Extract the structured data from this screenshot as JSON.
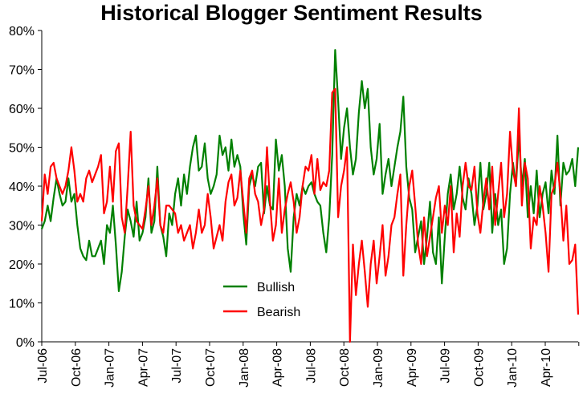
{
  "chart_data": {
    "type": "line",
    "title": "Historical Blogger Sentiment Results",
    "xlabel": "",
    "ylabel": "",
    "ylim": [
      0,
      80
    ],
    "yticks": [
      "0%",
      "10%",
      "20%",
      "30%",
      "40%",
      "50%",
      "60%",
      "70%",
      "80%"
    ],
    "xticks": [
      "Jul-06",
      "Oct-06",
      "Jan-07",
      "Apr-07",
      "Jul-07",
      "Oct-07",
      "Jan-08",
      "Apr-08",
      "Jul-08",
      "Oct-08",
      "Jan-09",
      "Apr-09",
      "Jul-09",
      "Oct-09",
      "Jan-10",
      "Apr-10"
    ],
    "grid": false,
    "legend_position": "lower-center",
    "series": [
      {
        "name": "Bullish",
        "color": "#008000",
        "values": [
          29,
          31,
          35,
          31,
          37,
          42,
          38,
          35,
          36,
          42,
          36,
          38,
          30,
          24,
          22,
          21,
          26,
          22,
          22,
          24,
          26,
          20,
          30,
          28,
          35,
          25,
          13,
          18,
          27,
          34,
          31,
          27,
          36,
          26,
          28,
          32,
          42,
          28,
          31,
          45,
          30,
          27,
          22,
          33,
          30,
          38,
          42,
          35,
          43,
          38,
          45,
          50,
          53,
          44,
          45,
          51,
          42,
          38,
          40,
          43,
          53,
          48,
          50,
          44,
          52,
          45,
          48,
          45,
          33,
          25,
          40,
          43,
          40,
          45,
          46,
          33,
          40,
          35,
          34,
          52,
          44,
          48,
          40,
          24,
          18,
          32,
          38,
          35,
          40,
          38,
          40,
          41,
          38,
          36,
          35,
          28,
          23,
          32,
          48,
          75,
          62,
          47,
          55,
          60,
          50,
          43,
          47,
          59,
          67,
          60,
          65,
          50,
          43,
          47,
          56,
          38,
          43,
          47,
          40,
          45,
          50,
          54,
          63,
          45,
          37,
          34,
          23,
          27,
          31,
          20,
          27,
          36,
          23,
          20,
          32,
          15,
          27,
          38,
          43,
          34,
          38,
          45,
          37,
          34,
          42,
          38,
          30,
          35,
          46,
          34,
          38,
          46,
          28,
          38,
          30,
          34,
          20,
          24,
          38,
          46,
          40,
          53,
          40,
          47,
          32,
          40,
          33,
          44,
          32,
          38,
          41,
          33,
          44,
          38,
          53,
          35,
          46,
          43,
          44,
          47,
          40,
          50
        ]
      },
      {
        "name": "Bearish",
        "color": "#ff0000",
        "values": [
          31,
          43,
          38,
          45,
          46,
          42,
          40,
          38,
          40,
          44,
          50,
          44,
          36,
          38,
          36,
          42,
          44,
          41,
          43,
          45,
          48,
          33,
          36,
          45,
          36,
          49,
          51,
          32,
          28,
          40,
          54,
          35,
          31,
          30,
          29,
          34,
          40,
          30,
          35,
          42,
          30,
          28,
          35,
          35,
          34,
          33,
          28,
          30,
          26,
          28,
          30,
          24,
          28,
          34,
          28,
          30,
          38,
          32,
          24,
          27,
          30,
          26,
          36,
          41,
          43,
          35,
          37,
          44,
          36,
          28,
          42,
          44,
          38,
          36,
          30,
          34,
          50,
          36,
          26,
          30,
          42,
          28,
          34,
          38,
          41,
          36,
          28,
          32,
          40,
          45,
          44,
          48,
          38,
          47,
          39,
          41,
          40,
          44,
          64,
          65,
          32,
          40,
          44,
          50,
          0,
          25,
          12,
          20,
          26,
          18,
          9,
          20,
          26,
          15,
          22,
          30,
          17,
          22,
          30,
          32,
          38,
          43,
          17,
          30,
          40,
          44,
          35,
          25,
          20,
          32,
          22,
          27,
          32,
          37,
          40,
          28,
          35,
          30,
          40,
          23,
          33,
          27,
          40,
          46,
          40,
          39,
          45,
          33,
          28,
          36,
          42,
          34,
          45,
          30,
          38,
          46,
          32,
          38,
          54,
          44,
          40,
          60,
          35,
          46,
          42,
          24,
          32,
          30,
          40,
          35,
          28,
          18,
          38,
          40,
          46,
          38,
          26,
          35,
          20,
          21,
          25,
          7
        ]
      }
    ]
  }
}
